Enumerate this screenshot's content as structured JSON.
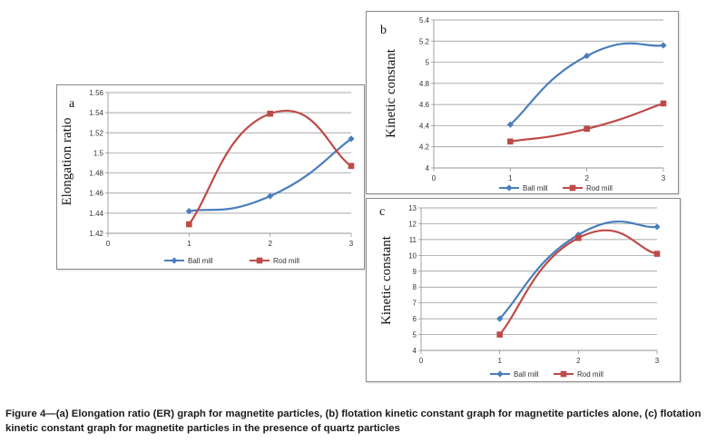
{
  "chart_data": [
    {
      "id": "a",
      "type": "line",
      "panel_label": "a",
      "ylabel": "Elongation ratio",
      "xlabel": "",
      "xlim": [
        0,
        3
      ],
      "x_ticks": [
        0,
        1,
        2,
        3
      ],
      "ylim": [
        1.42,
        1.56
      ],
      "y_ticks": [
        1.42,
        1.44,
        1.46,
        1.48,
        1.5,
        1.52,
        1.54,
        1.56
      ],
      "legend_position": "bottom",
      "series": [
        {
          "name": "Ball mill",
          "color": "#4a7ebb",
          "marker": "diamond",
          "x": [
            1,
            2,
            3
          ],
          "values": [
            1.442,
            1.457,
            1.514
          ]
        },
        {
          "name": "Rod mill",
          "color": "#be4b48",
          "marker": "square",
          "x": [
            1,
            2,
            3
          ],
          "values": [
            1.429,
            1.539,
            1.487
          ]
        }
      ]
    },
    {
      "id": "b",
      "type": "line",
      "panel_label": "b",
      "ylabel": "Kinetic constant",
      "xlabel": "",
      "xlim": [
        0,
        3
      ],
      "x_ticks": [
        0,
        1,
        2,
        3
      ],
      "ylim": [
        4,
        5.4
      ],
      "y_ticks": [
        4,
        4.2,
        4.4,
        4.6,
        4.8,
        5,
        5.2,
        5.4
      ],
      "legend_position": "bottom",
      "series": [
        {
          "name": "Ball mill",
          "color": "#4a7ebb",
          "marker": "diamond",
          "x": [
            1,
            2,
            3
          ],
          "values": [
            4.41,
            5.06,
            5.16
          ]
        },
        {
          "name": "Rod mill",
          "color": "#be4b48",
          "marker": "square",
          "x": [
            1,
            2,
            3
          ],
          "values": [
            4.25,
            4.37,
            4.61
          ]
        }
      ]
    },
    {
      "id": "c",
      "type": "line",
      "panel_label": "c",
      "ylabel": "Kinetic constant",
      "xlabel": "",
      "xlim": [
        0,
        3
      ],
      "x_ticks": [
        0,
        1,
        2,
        3
      ],
      "ylim": [
        4,
        13
      ],
      "y_ticks": [
        4,
        5,
        6,
        7,
        8,
        9,
        10,
        11,
        12,
        13
      ],
      "legend_position": "bottom",
      "series": [
        {
          "name": "Ball mill",
          "color": "#4a7ebb",
          "marker": "diamond",
          "x": [
            1,
            2,
            3
          ],
          "values": [
            6.0,
            11.3,
            11.8
          ]
        },
        {
          "name": "Rod mill",
          "color": "#be4b48",
          "marker": "square",
          "x": [
            1,
            2,
            3
          ],
          "values": [
            5.0,
            11.1,
            10.1
          ]
        }
      ]
    }
  ],
  "caption": "Figure 4—(a) Elongation ratio (ER) graph for magnetite particles, (b) flotation kinetic constant graph for magnetite particles alone, (c) flotation kinetic constant graph for magnetite particles in the presence of quartz particles"
}
